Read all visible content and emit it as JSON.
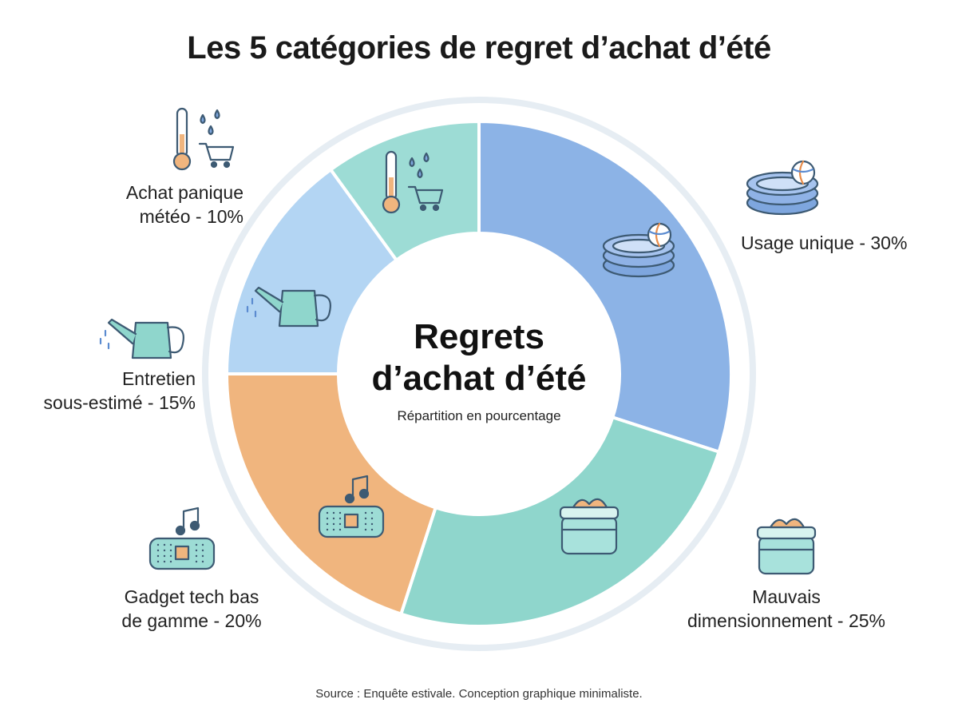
{
  "title": "Les 5 catégories de regret d’achat d’été",
  "center": {
    "title_line1": "Regrets",
    "title_line2": "d’achat d’été",
    "subtitle": "Répartition en pourcentage"
  },
  "source": "Source : Enquête estivale. Conception graphique minimaliste.",
  "chart_data": {
    "type": "pie",
    "style": "donut",
    "unit": "%",
    "slices": [
      {
        "label_lines": [
          "Usage unique - 30%"
        ],
        "value": 30,
        "color": "#8cb3e6",
        "icon": "pool-icon"
      },
      {
        "label_lines": [
          "Mauvais",
          "dimensionnement - 25%"
        ],
        "value": 25,
        "color": "#8fd6cc",
        "icon": "cooler-icon"
      },
      {
        "label_lines": [
          "Gadget tech bas",
          "de gamme - 20%"
        ],
        "value": 20,
        "color": "#f0b57e",
        "icon": "speaker-icon"
      },
      {
        "label_lines": [
          "Entretien",
          "sous-estimé - 15%"
        ],
        "value": 15,
        "color": "#b3d5f3",
        "icon": "watering-can-icon"
      },
      {
        "label_lines": [
          "Achat panique",
          "météo - 10%"
        ],
        "value": 10,
        "color": "#9ddcd5",
        "icon": "thermometer-cart-icon"
      }
    ]
  }
}
